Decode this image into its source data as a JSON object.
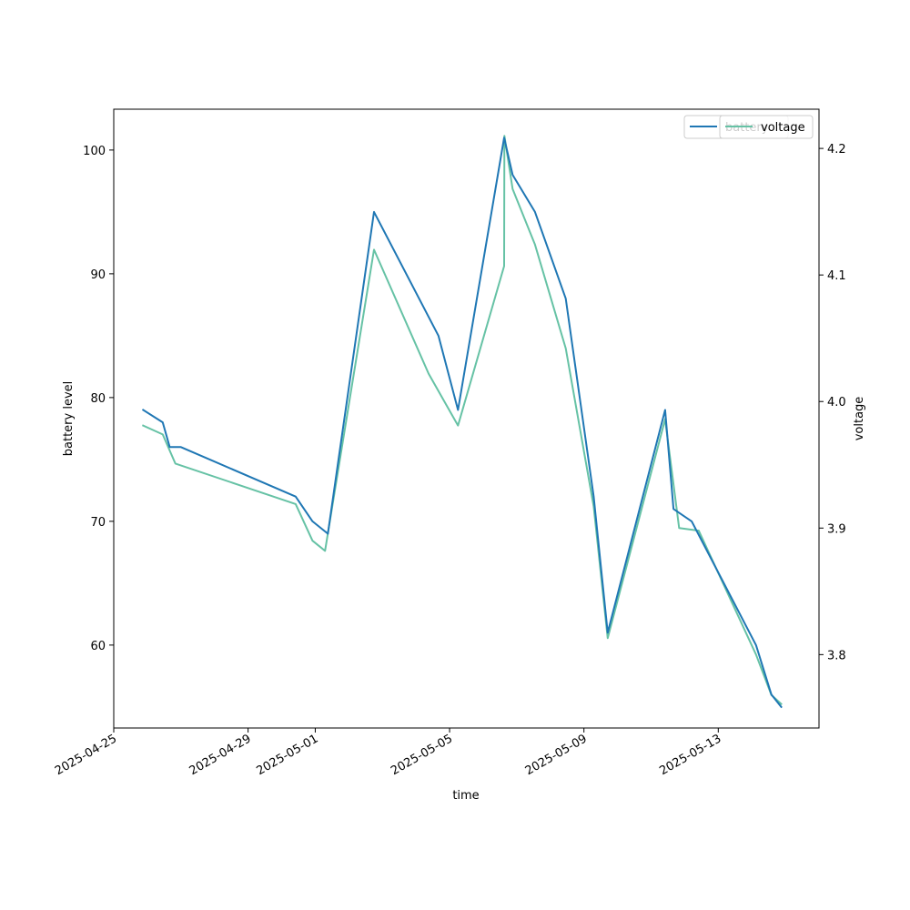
{
  "chart_data": {
    "type": "line",
    "xlabel": "time",
    "ylabel_left": "battery level",
    "ylabel_right": "voltage",
    "x_ticks": [
      "2025-04-25",
      "2025-04-29",
      "2025-05-01",
      "2025-05-05",
      "2025-05-09",
      "2025-05-13"
    ],
    "y_left_ticks": [
      "60",
      "70",
      "80",
      "90",
      "100"
    ],
    "y_right_ticks": [
      "3.8",
      "3.9",
      "4.0",
      "4.1",
      "4.2"
    ],
    "y_left_lim": [
      53.3,
      103.3
    ],
    "y_right_lim": [
      3.742,
      4.231
    ],
    "x_lim": [
      "2025-04-25T00:00",
      "2025-05-15T23:59"
    ],
    "series": [
      {
        "name": "battery",
        "axis": "left",
        "color": "#1f77b4",
        "x": [
          "2025-04-25T21:00",
          "2025-04-26T11:00",
          "2025-04-26T16:00",
          "2025-04-27T00:00",
          "2025-04-30T10:00",
          "2025-04-30T22:00",
          "2025-05-01T09:00",
          "2025-05-02T18:00",
          "2025-05-04T16:00",
          "2025-05-05T06:00",
          "2025-05-06T15:00",
          "2025-05-06T21:00",
          "2025-05-07T13:00",
          "2025-05-08T11:00",
          "2025-05-09T07:00",
          "2025-05-09T17:00",
          "2025-05-11T10:00",
          "2025-05-11T16:00",
          "2025-05-12T05:00",
          "2025-05-14T03:00",
          "2025-05-14T14:00",
          "2025-05-14T21:00"
        ],
        "y": [
          79,
          78,
          76,
          76,
          72,
          70,
          69,
          95,
          85,
          79,
          101,
          98,
          95,
          88,
          72,
          61,
          79,
          71,
          70,
          60,
          56,
          55
        ]
      },
      {
        "name": "voltage",
        "axis": "right",
        "color": "#66c2a5",
        "x": [
          "2025-04-25T21:00",
          "2025-04-26T11:00",
          "2025-04-26T20:00",
          "2025-04-30T10:00",
          "2025-04-30T22:00",
          "2025-05-01T07:00",
          "2025-05-02T18:00",
          "2025-05-04T09:00",
          "2025-05-05T06:00",
          "2025-05-06T15:00",
          "2025-05-06T15:10",
          "2025-05-06T21:00",
          "2025-05-07T13:00",
          "2025-05-08T11:00",
          "2025-05-09T07:00",
          "2025-05-09T17:00",
          "2025-05-11T10:00",
          "2025-05-11T20:00",
          "2025-05-12T10:00",
          "2025-05-14T03:00",
          "2025-05-14T14:00",
          "2025-05-14T21:00"
        ],
        "y": [
          3.981,
          3.974,
          3.951,
          3.919,
          3.89,
          3.882,
          4.12,
          4.022,
          3.981,
          4.107,
          4.21,
          4.168,
          4.124,
          4.042,
          3.917,
          3.813,
          3.986,
          3.9,
          3.898,
          3.8,
          3.768,
          3.761
        ]
      }
    ],
    "legend": {
      "placement": "upper right",
      "entries": [
        "battery",
        "voltage"
      ]
    }
  }
}
